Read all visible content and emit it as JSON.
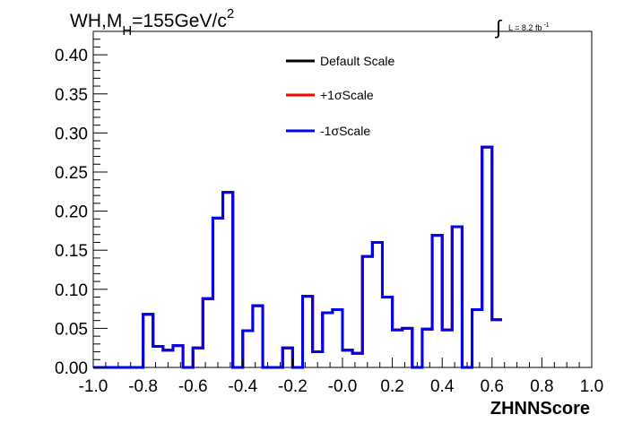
{
  "chart_data": {
    "type": "line",
    "title_main": "WH,M",
    "title_sub": "H",
    "title_rest": "=155GeV/c",
    "title_sup": "2",
    "lumi_integral": "∫",
    "lumi_text": "L = 8.2 fb",
    "lumi_sup": "-1",
    "xlabel": "ZHNNScore",
    "ylabel": "",
    "xlim": [
      -1.0,
      1.0
    ],
    "ylim": [
      0.0,
      0.43
    ],
    "x_ticks": [
      "-1.0",
      "-0.8",
      "-0.6",
      "-0.4",
      "-0.2",
      "-0.0",
      "0.2",
      "0.4",
      "0.6",
      "0.8",
      "1.0"
    ],
    "y_ticks": [
      "0.00",
      "0.05",
      "0.10",
      "0.15",
      "0.20",
      "0.25",
      "0.30",
      "0.35",
      "0.40"
    ],
    "bin_edges_start": -1.0,
    "bin_width": 0.04,
    "legend_placement": "top-center",
    "series": [
      {
        "name": "Default Scale",
        "color": "#000000",
        "values": [
          0.0,
          0.0,
          0.0,
          0.0,
          0.0,
          0.068,
          0.027,
          0.022,
          0.028,
          0.0,
          0.025,
          0.088,
          0.191,
          0.224,
          0.0,
          0.047,
          0.079,
          0.0,
          0.0,
          0.025,
          0.0,
          0.091,
          0.02,
          0.07,
          0.074,
          0.022,
          0.018,
          0.142,
          0.16,
          0.09,
          0.048,
          0.05,
          0.0,
          0.049,
          0.169,
          0.048,
          0.18,
          0.0,
          0.074,
          0.282,
          0.061
        ]
      },
      {
        "name": "+1σScale",
        "color": "#ff0000",
        "values": [
          0.0,
          0.0,
          0.0,
          0.0,
          0.0,
          0.068,
          0.027,
          0.022,
          0.028,
          0.0,
          0.025,
          0.088,
          0.191,
          0.224,
          0.0,
          0.047,
          0.079,
          0.0,
          0.0,
          0.025,
          0.0,
          0.091,
          0.02,
          0.07,
          0.074,
          0.022,
          0.018,
          0.142,
          0.16,
          0.09,
          0.048,
          0.05,
          0.0,
          0.049,
          0.169,
          0.048,
          0.18,
          0.0,
          0.074,
          0.282,
          0.061
        ]
      },
      {
        "name": "-1σScale",
        "color": "#0000ee",
        "values": [
          0.0,
          0.0,
          0.0,
          0.0,
          0.0,
          0.068,
          0.027,
          0.022,
          0.028,
          0.0,
          0.025,
          0.088,
          0.191,
          0.224,
          0.0,
          0.047,
          0.079,
          0.0,
          0.0,
          0.025,
          0.0,
          0.091,
          0.02,
          0.07,
          0.074,
          0.022,
          0.018,
          0.142,
          0.16,
          0.09,
          0.048,
          0.05,
          0.0,
          0.049,
          0.169,
          0.048,
          0.18,
          0.0,
          0.074,
          0.282,
          0.061
        ]
      }
    ]
  }
}
